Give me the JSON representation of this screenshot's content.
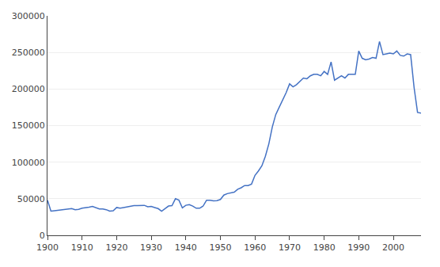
{
  "chart_data": {
    "type": "line",
    "x": [
      1900,
      1901,
      1902,
      1903,
      1904,
      1905,
      1906,
      1907,
      1908,
      1909,
      1910,
      1911,
      1912,
      1913,
      1914,
      1915,
      1916,
      1917,
      1918,
      1919,
      1920,
      1921,
      1922,
      1923,
      1924,
      1925,
      1926,
      1927,
      1928,
      1929,
      1930,
      1931,
      1932,
      1933,
      1934,
      1935,
      1936,
      1937,
      1938,
      1939,
      1940,
      1941,
      1942,
      1943,
      1944,
      1945,
      1946,
      1947,
      1948,
      1949,
      1950,
      1951,
      1952,
      1953,
      1954,
      1955,
      1956,
      1957,
      1958,
      1959,
      1960,
      1961,
      1962,
      1963,
      1964,
      1965,
      1966,
      1967,
      1968,
      1969,
      1970,
      1971,
      1972,
      1973,
      1974,
      1975,
      1976,
      1977,
      1978,
      1979,
      1980,
      1981,
      1982,
      1983,
      1984,
      1985,
      1986,
      1987,
      1988,
      1989,
      1990,
      1991,
      1992,
      1993,
      1994,
      1995,
      1996,
      1997,
      1998,
      1999,
      2000,
      2001,
      2002,
      2003,
      2004,
      2005,
      2006,
      2007,
      2008
    ],
    "values": [
      48000,
      33000,
      33500,
      34000,
      35000,
      35500,
      36000,
      36500,
      35000,
      35500,
      37000,
      37500,
      38500,
      39500,
      38000,
      36000,
      36000,
      35000,
      33000,
      33500,
      38000,
      37000,
      38000,
      39000,
      40000,
      40500,
      40500,
      41000,
      41000,
      39000,
      39500,
      38000,
      36500,
      33000,
      37000,
      40000,
      40500,
      50000,
      48000,
      37500,
      41000,
      42000,
      40000,
      37000,
      37000,
      40000,
      48000,
      48000,
      47000,
      47500,
      49000,
      55000,
      57000,
      58000,
      59000,
      63000,
      65000,
      68000,
      68000,
      70000,
      82000,
      88000,
      95000,
      108000,
      125000,
      148000,
      165000,
      175000,
      185000,
      195000,
      207000,
      203000,
      206000,
      210000,
      215000,
      214000,
      218000,
      220000,
      220000,
      218000,
      224000,
      220000,
      237000,
      212000,
      215000,
      218000,
      215000,
      220000,
      220000,
      220000,
      252000,
      242000,
      240000,
      241000,
      243000,
      242000,
      265000,
      247000,
      248000,
      249000,
      248000,
      252000,
      246000,
      245000,
      248000,
      247000,
      202000,
      168000,
      167000
    ],
    "color": "#4472C4",
    "xlim": [
      1900,
      2008
    ],
    "xticks": [
      1900,
      1910,
      1920,
      1930,
      1940,
      1950,
      1960,
      1970,
      1980,
      1990,
      2000
    ],
    "ylim": [
      0,
      300000
    ],
    "yticks": [
      0,
      50000,
      100000,
      150000,
      200000,
      250000,
      300000
    ],
    "grid": "y"
  }
}
